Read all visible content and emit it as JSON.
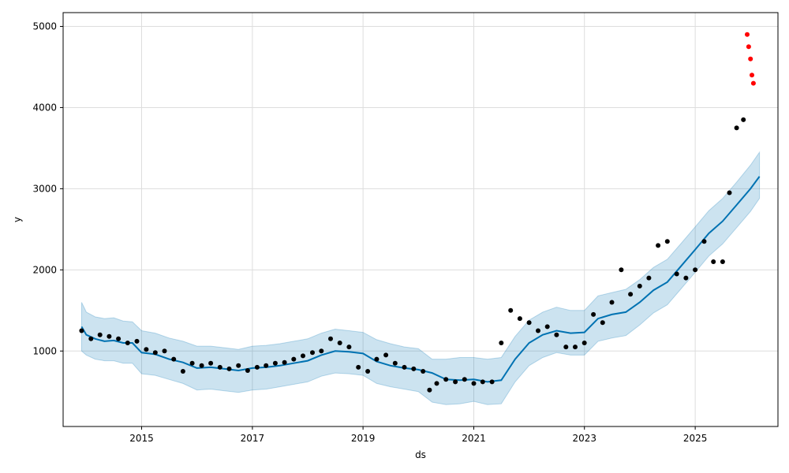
{
  "chart_data": {
    "type": "line",
    "title": "",
    "xlabel": "ds",
    "ylabel": "y",
    "xlim": [
      "2013-08-01",
      "2026-07-01"
    ],
    "ylim": [
      70,
      5170
    ],
    "grid": true,
    "x_ticks": [
      "2015",
      "2017",
      "2019",
      "2021",
      "2023",
      "2025"
    ],
    "y_ticks": [
      "1000",
      "2000",
      "3000",
      "4000",
      "5000"
    ],
    "colors": {
      "forecast_line": "#0072B2",
      "uncertainty_band": "#0072B2",
      "actual_points": "#000000",
      "outlier_points": "#ff0000",
      "grid": "#dddddd"
    },
    "series": [
      {
        "role": "forecast",
        "x": [
          "2013-12-01",
          "2014-01-01",
          "2014-03-01",
          "2014-05-01",
          "2014-07-01",
          "2014-09-01",
          "2014-11-01",
          "2015-01-01",
          "2015-04-01",
          "2015-07-01",
          "2015-10-01",
          "2016-01-01",
          "2016-04-01",
          "2016-07-01",
          "2016-10-01",
          "2017-01-01",
          "2017-04-01",
          "2017-07-01",
          "2017-10-01",
          "2018-01-01",
          "2018-04-01",
          "2018-07-01",
          "2018-10-01",
          "2019-01-01",
          "2019-04-01",
          "2019-07-01",
          "2019-10-01",
          "2020-01-01",
          "2020-04-01",
          "2020-07-01",
          "2020-10-01",
          "2021-01-01",
          "2021-04-01",
          "2021-07-01",
          "2021-10-01",
          "2022-01-01",
          "2022-04-01",
          "2022-07-01",
          "2022-10-01",
          "2023-01-01",
          "2023-04-01",
          "2023-07-01",
          "2023-10-01",
          "2024-01-01",
          "2024-04-01",
          "2024-07-01",
          "2024-10-01",
          "2025-01-01",
          "2025-04-01",
          "2025-07-01",
          "2025-10-01",
          "2026-01-01",
          "2026-03-01"
        ],
        "values": [
          1300,
          1200,
          1150,
          1120,
          1130,
          1100,
          1100,
          980,
          960,
          900,
          860,
          790,
          800,
          780,
          760,
          790,
          800,
          820,
          850,
          880,
          950,
          1000,
          990,
          970,
          870,
          820,
          790,
          770,
          730,
          650,
          640,
          650,
          620,
          640,
          900,
          1100,
          1200,
          1250,
          1220,
          1230,
          1400,
          1450,
          1480,
          1600,
          1750,
          1850,
          2050,
          2250,
          2450,
          2600,
          2800,
          3000,
          3150
        ]
      },
      {
        "role": "actual",
        "x": [
          "2013-12-01",
          "2014-02-01",
          "2014-04-01",
          "2014-06-01",
          "2014-08-01",
          "2014-10-01",
          "2014-12-01",
          "2015-02-01",
          "2015-04-01",
          "2015-06-01",
          "2015-08-01",
          "2015-10-01",
          "2015-12-01",
          "2016-02-01",
          "2016-04-01",
          "2016-06-01",
          "2016-08-01",
          "2016-10-01",
          "2016-12-01",
          "2017-02-01",
          "2017-04-01",
          "2017-06-01",
          "2017-08-01",
          "2017-10-01",
          "2017-12-01",
          "2018-02-01",
          "2018-04-01",
          "2018-06-01",
          "2018-08-01",
          "2018-10-01",
          "2018-12-01",
          "2019-02-01",
          "2019-04-01",
          "2019-06-01",
          "2019-08-01",
          "2019-10-01",
          "2019-12-01",
          "2020-02-01",
          "2020-03-15",
          "2020-05-01",
          "2020-07-01",
          "2020-09-01",
          "2020-11-01",
          "2021-01-01",
          "2021-03-01",
          "2021-05-01",
          "2021-07-01",
          "2021-09-01",
          "2021-11-01",
          "2022-01-01",
          "2022-03-01",
          "2022-05-01",
          "2022-07-01",
          "2022-09-01",
          "2022-11-01",
          "2023-01-01",
          "2023-03-01",
          "2023-05-01",
          "2023-07-01",
          "2023-09-01",
          "2023-11-01",
          "2024-01-01",
          "2024-03-01",
          "2024-05-01",
          "2024-07-01",
          "2024-09-01",
          "2024-11-01",
          "2025-01-01",
          "2025-03-01",
          "2025-05-01",
          "2025-07-01",
          "2025-08-15",
          "2025-10-01",
          "2025-11-15"
        ],
        "values": [
          1250,
          1150,
          1200,
          1180,
          1150,
          1100,
          1120,
          1020,
          980,
          1000,
          900,
          750,
          850,
          820,
          850,
          800,
          780,
          820,
          760,
          800,
          820,
          850,
          860,
          900,
          940,
          980,
          1000,
          1150,
          1100,
          1050,
          800,
          750,
          900,
          950,
          850,
          800,
          780,
          750,
          520,
          600,
          650,
          620,
          650,
          600,
          620,
          620,
          1100,
          1500,
          1400,
          1350,
          1250,
          1300,
          1200,
          1050,
          1050,
          1100,
          1450,
          1350,
          1600,
          2000,
          1700,
          1800,
          1900,
          2300,
          2350,
          1950,
          1900,
          2000,
          2350,
          2100,
          2100,
          2950,
          3750,
          3850
        ]
      },
      {
        "role": "outliers",
        "x": [
          "2025-12-10",
          "2025-12-20",
          "2026-01-01",
          "2026-01-10",
          "2026-01-20"
        ],
        "values": [
          4900,
          4750,
          4600,
          4400,
          4300
        ]
      }
    ],
    "band": {
      "x": [
        "2013-12-01",
        "2014-01-01",
        "2014-03-01",
        "2014-05-01",
        "2014-07-01",
        "2014-09-01",
        "2014-11-01",
        "2015-01-01",
        "2015-04-01",
        "2015-07-01",
        "2015-10-01",
        "2016-01-01",
        "2016-04-01",
        "2016-07-01",
        "2016-10-01",
        "2017-01-01",
        "2017-04-01",
        "2017-07-01",
        "2017-10-01",
        "2018-01-01",
        "2018-04-01",
        "2018-07-01",
        "2018-10-01",
        "2019-01-01",
        "2019-04-01",
        "2019-07-01",
        "2019-10-01",
        "2020-01-01",
        "2020-04-01",
        "2020-07-01",
        "2020-10-01",
        "2021-01-01",
        "2021-04-01",
        "2021-07-01",
        "2021-10-01",
        "2022-01-01",
        "2022-04-01",
        "2022-07-01",
        "2022-10-01",
        "2023-01-01",
        "2023-04-01",
        "2023-07-01",
        "2023-10-01",
        "2024-01-01",
        "2024-04-01",
        "2024-07-01",
        "2024-10-01",
        "2025-01-01",
        "2025-04-01",
        "2025-07-01",
        "2025-10-01",
        "2026-01-01",
        "2026-03-01"
      ],
      "lower": [
        1000,
        950,
        900,
        880,
        880,
        850,
        850,
        720,
        700,
        650,
        600,
        520,
        530,
        510,
        490,
        520,
        530,
        560,
        590,
        620,
        690,
        730,
        720,
        700,
        600,
        560,
        530,
        500,
        370,
        340,
        350,
        380,
        340,
        350,
        620,
        820,
        920,
        980,
        950,
        950,
        1120,
        1160,
        1190,
        1320,
        1470,
        1570,
        1770,
        1970,
        2170,
        2320,
        2520,
        2720,
        2880
      ],
      "upper": [
        1600,
        1480,
        1420,
        1400,
        1410,
        1370,
        1360,
        1250,
        1220,
        1160,
        1120,
        1060,
        1060,
        1040,
        1020,
        1060,
        1070,
        1090,
        1120,
        1150,
        1220,
        1270,
        1250,
        1230,
        1140,
        1090,
        1050,
        1030,
        900,
        900,
        920,
        920,
        900,
        920,
        1180,
        1380,
        1480,
        1540,
        1500,
        1500,
        1680,
        1720,
        1760,
        1880,
        2030,
        2130,
        2330,
        2530,
        2730,
        2880,
        3080,
        3290,
        3450
      ]
    }
  }
}
